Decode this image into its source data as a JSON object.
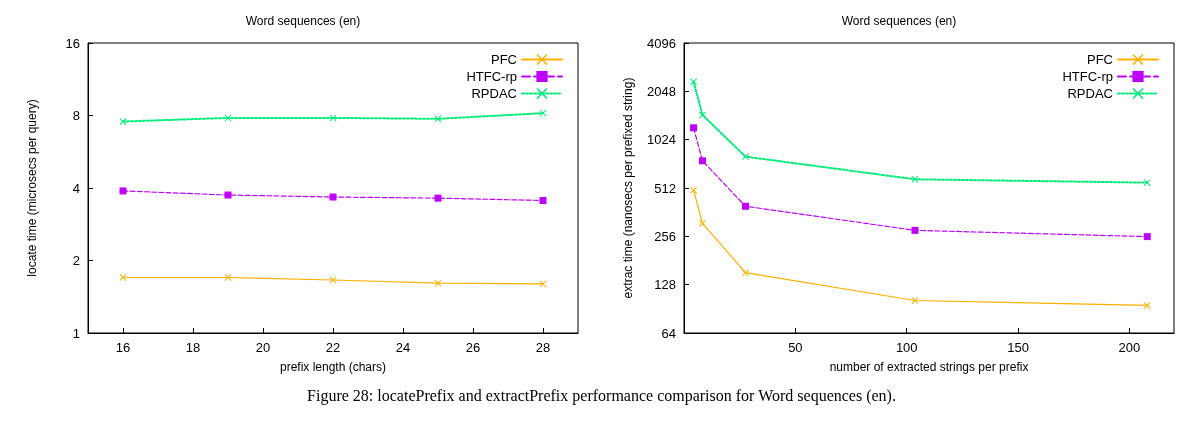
{
  "chart_data": [
    {
      "type": "line",
      "title": "Word sequences (en)",
      "xlabel": "prefix length (chars)",
      "ylabel": "locate time (microsecs per query)",
      "x": [
        16,
        19,
        22,
        25,
        28
      ],
      "xlim": [
        15,
        29
      ],
      "xticks": [
        16,
        18,
        20,
        22,
        24,
        26,
        28
      ],
      "ylim": [
        1,
        16
      ],
      "yticks": [
        1,
        2,
        4,
        8,
        16
      ],
      "log": "y",
      "grid": false,
      "legend": "top right",
      "series": [
        {
          "name": "PFC",
          "color": "#ffb000",
          "values": [
            1.7,
            1.7,
            1.66,
            1.61,
            1.6
          ],
          "marker": "cross",
          "line_style": "solid"
        },
        {
          "name": "HTFC-rp",
          "color": "#c000ff",
          "values": [
            3.89,
            3.74,
            3.67,
            3.63,
            3.55
          ],
          "marker": "square",
          "line_style": "dashed"
        },
        {
          "name": "RPDAC",
          "color": "#00ee77",
          "values": [
            7.55,
            7.82,
            7.82,
            7.75,
            8.18
          ],
          "marker": "cross",
          "line_style": "dotted"
        }
      ],
      "annotations": [
        "Figure 28: locatePrefix and extractPrefix performance comparison for Word sequences (en)."
      ]
    },
    {
      "type": "line",
      "title": "Word sequences (en)",
      "xlabel": "number of extracted strings per prefix",
      "ylabel": "extrac time (nanosecs per prefixed string)",
      "x": [
        4.3,
        8.3,
        27.6,
        103.7,
        208
      ],
      "xlim": [
        0,
        220
      ],
      "xticks": [
        50,
        100,
        150,
        200
      ],
      "ylim": [
        64,
        4096
      ],
      "yticks": [
        64,
        128,
        256,
        512,
        1024,
        2048,
        4096
      ],
      "log": "y",
      "grid": false,
      "legend": "top right",
      "series": [
        {
          "name": "PFC",
          "color": "#ffb000",
          "values": [
            496,
            308,
            152,
            102,
            95
          ],
          "marker": "cross",
          "line_style": "solid"
        },
        {
          "name": "HTFC-rp",
          "color": "#c000ff",
          "values": [
            1213,
            756,
            394,
            279,
            255
          ],
          "marker": "square",
          "line_style": "dashed"
        },
        {
          "name": "RPDAC",
          "color": "#00ee77",
          "values": [
            2351,
            1458,
            803,
            580,
            553
          ],
          "marker": "cross",
          "line_style": "dotted"
        }
      ]
    }
  ]
}
